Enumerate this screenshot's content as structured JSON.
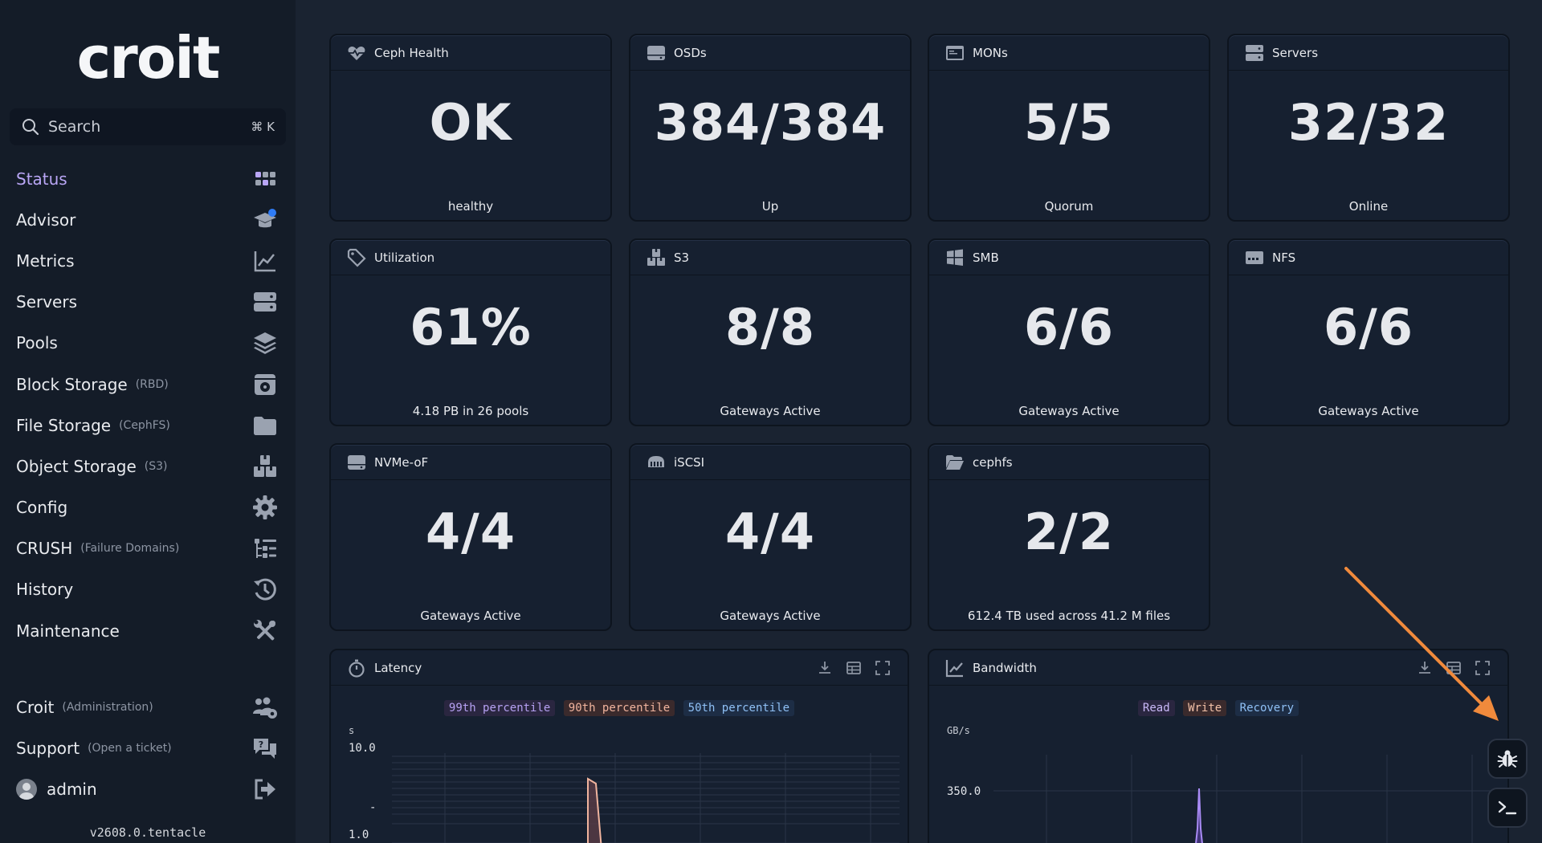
{
  "brand": {
    "logo": "croit"
  },
  "search": {
    "label": "Search",
    "shortcut": "⌘ K"
  },
  "nav": [
    {
      "label": "Status",
      "sub": "",
      "icon": "grid-icon",
      "active": true
    },
    {
      "label": "Advisor",
      "sub": "",
      "icon": "graduation-cap-icon",
      "badge": true
    },
    {
      "label": "Metrics",
      "sub": "",
      "icon": "line-chart-icon"
    },
    {
      "label": "Servers",
      "sub": "",
      "icon": "server-icon"
    },
    {
      "label": "Pools",
      "sub": "",
      "icon": "layers-icon"
    },
    {
      "label": "Block Storage",
      "sub": "(RBD)",
      "icon": "disk-icon"
    },
    {
      "label": "File Storage",
      "sub": "(CephFS)",
      "icon": "folder-icon"
    },
    {
      "label": "Object Storage",
      "sub": "(S3)",
      "icon": "boxes-icon"
    },
    {
      "label": "Config",
      "sub": "",
      "icon": "gear-icon"
    },
    {
      "label": "CRUSH",
      "sub": "(Failure Domains)",
      "icon": "tree-icon"
    },
    {
      "label": "History",
      "sub": "",
      "icon": "history-icon"
    },
    {
      "label": "Maintenance",
      "sub": "",
      "icon": "tools-icon"
    }
  ],
  "nav_bottom": [
    {
      "label": "Croit",
      "sub": "(Administration)",
      "icon": "users-gear-icon"
    },
    {
      "label": "Support",
      "sub": "(Open a ticket)",
      "icon": "support-chat-icon"
    },
    {
      "label": "admin",
      "sub": "",
      "icon": "logout-icon"
    }
  ],
  "version": "v2608.0.tentacle",
  "cards": [
    {
      "title": "Ceph Health",
      "icon": "heartbeat-icon",
      "value": "OK",
      "caption": "healthy"
    },
    {
      "title": "OSDs",
      "icon": "drive-icon",
      "value": "384/384",
      "caption": "Up"
    },
    {
      "title": "MONs",
      "icon": "monitor-icon",
      "value": "5/5",
      "caption": "Quorum"
    },
    {
      "title": "Servers",
      "icon": "server-icon",
      "value": "32/32",
      "caption": "Online"
    },
    {
      "title": "Utilization",
      "icon": "tag-icon",
      "value": "61%",
      "caption": "4.18 PB in 26 pools"
    },
    {
      "title": "S3",
      "icon": "boxes-icon",
      "value": "8/8",
      "caption": "Gateways Active"
    },
    {
      "title": "SMB",
      "icon": "windows-icon",
      "value": "6/6",
      "caption": "Gateways Active"
    },
    {
      "title": "NFS",
      "icon": "nfs-drive-icon",
      "value": "6/6",
      "caption": "Gateways Active"
    },
    {
      "title": "NVMe-oF",
      "icon": "drive-icon",
      "value": "4/4",
      "caption": "Gateways Active"
    },
    {
      "title": "iSCSI",
      "icon": "iscsi-icon",
      "value": "4/4",
      "caption": "Gateways Active"
    },
    {
      "title": "cephfs",
      "icon": "folder-open-icon",
      "value": "2/2",
      "caption": "612.4 TB used across 41.2 M files"
    }
  ],
  "latency": {
    "title": "Latency",
    "legend": [
      "99th percentile",
      "90th percentile",
      "50th percentile"
    ],
    "unit": "s",
    "ticks": [
      "10.0",
      "-",
      "1.0"
    ]
  },
  "bandwidth": {
    "title": "Bandwidth",
    "legend": [
      "Read",
      "Write",
      "Recovery"
    ],
    "unit": "GB/s",
    "ticks": [
      "350.0"
    ]
  },
  "colors": {
    "sidebar_bg": "#141c28",
    "main_bg": "#1a2331",
    "active": "#b9a6f5",
    "p99": "#b6a1f2",
    "p90": "#f0b49e",
    "p50": "#8fc0f5",
    "read": "#c9b8f7",
    "write": "#f3c2a8",
    "recovery": "#8fc0f5",
    "arrow": "#f08a3c"
  },
  "fabs": [
    {
      "icon": "bug-icon"
    },
    {
      "icon": "terminal-icon"
    }
  ]
}
